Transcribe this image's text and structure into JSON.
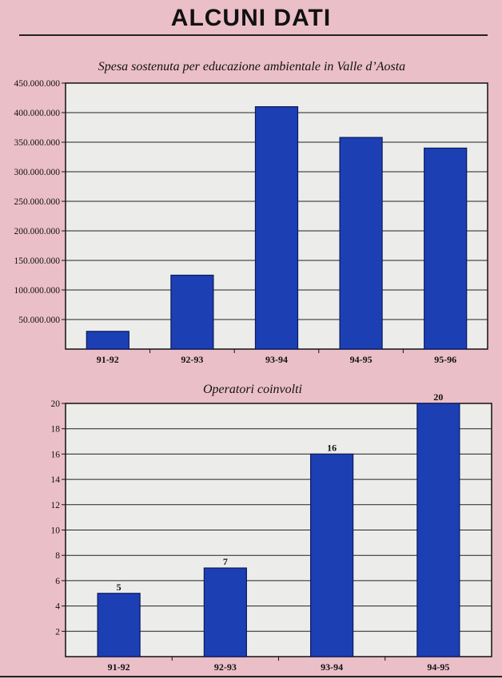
{
  "header": {
    "title": "ALCUNI DATI"
  },
  "colors": {
    "background": "#ebbfc8",
    "plot_area": "#ececea",
    "bar": "#1c3fb4",
    "bar_stroke": "#0a1a5c",
    "grid": "#222222"
  },
  "chart_data": [
    {
      "type": "bar",
      "title": "Spesa sostenuta per educazione ambientale in Valle d’Aosta",
      "categories": [
        "91-92",
        "92-93",
        "93-94",
        "94-95",
        "95-96"
      ],
      "values": [
        30000000,
        125000000,
        410000000,
        358000000,
        340000000
      ],
      "ylim": [
        0,
        450000000
      ],
      "yticks": [
        50000000,
        100000000,
        150000000,
        200000000,
        250000000,
        300000000,
        350000000,
        400000000,
        450000000
      ],
      "ytick_labels": [
        "50.000.000",
        "100.000.000",
        "150.000.000",
        "200.000.000",
        "250.000.000",
        "300.000.000",
        "350.000.000",
        "400.000.000",
        "450.000.000"
      ],
      "data_labels": [],
      "grid": true
    },
    {
      "type": "bar",
      "title": "Operatori coinvolti",
      "categories": [
        "91-92",
        "92-93",
        "93-94",
        "94-95"
      ],
      "values": [
        5,
        7,
        16,
        20
      ],
      "ylim": [
        0,
        20
      ],
      "yticks": [
        2,
        4,
        6,
        8,
        10,
        12,
        14,
        16,
        18,
        20
      ],
      "ytick_labels": [
        "2",
        "4",
        "6",
        "8",
        "10",
        "12",
        "14",
        "16",
        "18",
        "20"
      ],
      "data_labels": [
        "5",
        "7",
        "16",
        "20"
      ],
      "grid": true
    }
  ]
}
